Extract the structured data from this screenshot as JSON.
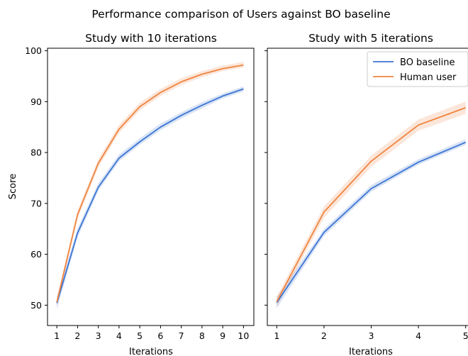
{
  "chart_data": {
    "title": "Performance comparison of Users against BO baseline",
    "type": "line",
    "legend": {
      "location": "upper-right of right panel"
    },
    "colors": {
      "BO baseline": "#3b75d3",
      "Human user": "#ef8440"
    },
    "shared_y": {
      "label": "Score",
      "ylim": [
        46,
        100.5
      ],
      "ticks": [
        50,
        60,
        70,
        80,
        90,
        100
      ]
    },
    "panels": [
      {
        "title": "Study with 10 iterations",
        "xlabel": "Iterations",
        "xlim": [
          0.55,
          10.5
        ],
        "x": [
          1,
          2,
          3,
          4,
          5,
          6,
          7,
          8,
          9,
          10
        ],
        "series": [
          {
            "name": "BO baseline",
            "values": [
              50.4,
              64.2,
              73.2,
              78.9,
              82.1,
              85.0,
              87.3,
              89.3,
              91.1,
              92.5
            ],
            "lower": [
              49.2,
              63.3,
              72.5,
              78.3,
              81.5,
              84.4,
              86.7,
              88.7,
              90.6,
              92.0
            ],
            "upper": [
              51.6,
              65.1,
              74.0,
              79.6,
              82.8,
              85.7,
              87.9,
              89.9,
              91.6,
              93.0
            ]
          },
          {
            "name": "Human user",
            "values": [
              50.6,
              67.8,
              77.9,
              84.6,
              89.0,
              91.8,
              93.9,
              95.4,
              96.5,
              97.2
            ],
            "lower": [
              49.8,
              67.0,
              77.1,
              83.8,
              88.3,
              91.1,
              93.3,
              94.8,
              96.0,
              96.7
            ],
            "upper": [
              51.5,
              68.6,
              78.7,
              85.4,
              89.8,
              92.5,
              94.6,
              96.0,
              97.1,
              97.8
            ]
          }
        ]
      },
      {
        "title": "Study with 5 iterations",
        "xlabel": "Iterations",
        "xlim": [
          0.8,
          5.05
        ],
        "x": [
          1,
          2,
          3,
          4,
          5
        ],
        "series": [
          {
            "name": "BO baseline",
            "values": [
              50.5,
              64.3,
              72.9,
              78.1,
              82.0
            ],
            "lower": [
              49.4,
              63.6,
              72.3,
              77.6,
              81.5
            ],
            "upper": [
              51.6,
              65.0,
              73.6,
              78.7,
              82.6
            ]
          },
          {
            "name": "Human user",
            "values": [
              50.7,
              68.3,
              78.3,
              85.4,
              88.8
            ],
            "lower": [
              49.7,
              67.2,
              77.2,
              84.3,
              87.6
            ],
            "upper": [
              51.7,
              69.4,
              79.4,
              86.5,
              90.0
            ]
          }
        ]
      }
    ]
  }
}
